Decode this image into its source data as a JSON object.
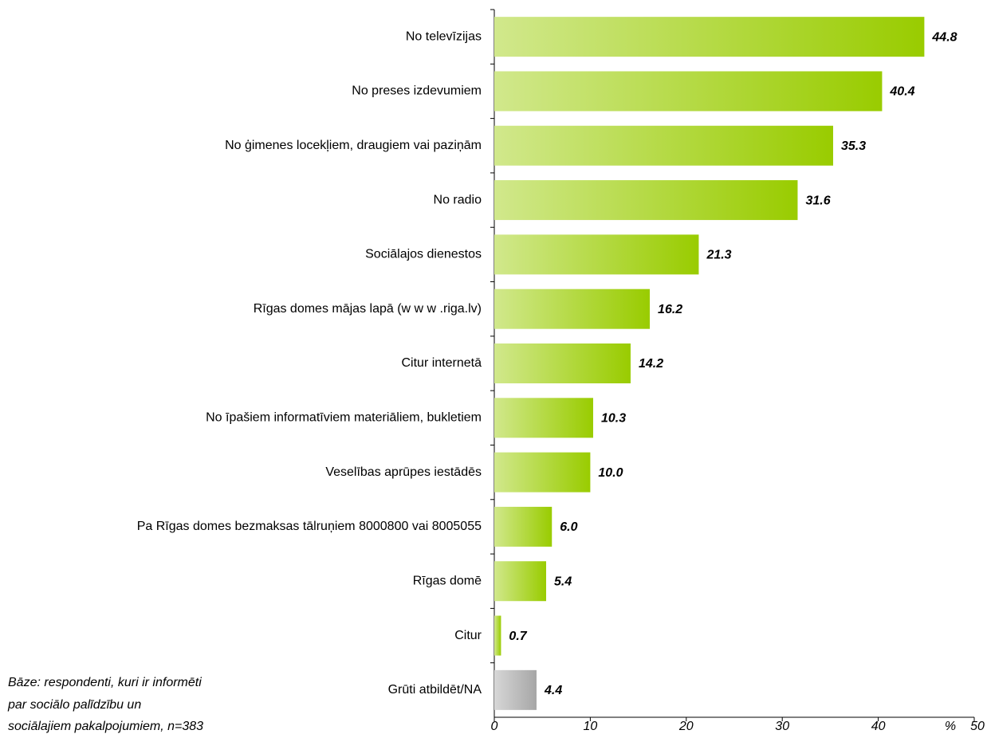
{
  "chart_data": {
    "type": "bar",
    "orientation": "horizontal",
    "categories": [
      "No televīzijas",
      "No preses izdevumiem",
      "No ģimenes locekļiem, draugiem vai paziņām",
      "No radio",
      "Sociālajos dienestos",
      "Rīgas domes mājas lapā (w w w .riga.lv)",
      "Citur internetā",
      "No īpašiem informatīviem materiāliem, bukletiem",
      "Veselības aprūpes iestādēs",
      "Pa Rīgas domes bezmaksas tālruņiem 8000800 vai 8005055",
      "Rīgas domē",
      "Citur",
      "Grūti atbildēt/NA"
    ],
    "values": [
      44.8,
      40.4,
      35.3,
      31.6,
      21.3,
      16.2,
      14.2,
      10.3,
      10.0,
      6.0,
      5.4,
      0.7,
      4.4
    ],
    "value_labels": [
      "44.8",
      "40.4",
      "35.3",
      "31.6",
      "21.3",
      "16.2",
      "14.2",
      "10.3",
      "10.0",
      "6.0",
      "5.4",
      "0.7",
      "4.4"
    ],
    "colors": [
      "#99cc00",
      "#99cc00",
      "#99cc00",
      "#99cc00",
      "#99cc00",
      "#99cc00",
      "#99cc00",
      "#99cc00",
      "#99cc00",
      "#99cc00",
      "#99cc00",
      "#99cc00",
      "#a6a6a6"
    ],
    "xlim": [
      0,
      50
    ],
    "xticks": [
      0,
      10,
      20,
      30,
      40,
      50
    ],
    "x_label": "%",
    "note": [
      "Bāze: respondenti, kuri ir informēti",
      "par sociālo palīdzību un",
      "sociālajiem pakalpojumiem, n=383"
    ],
    "grid": false
  }
}
